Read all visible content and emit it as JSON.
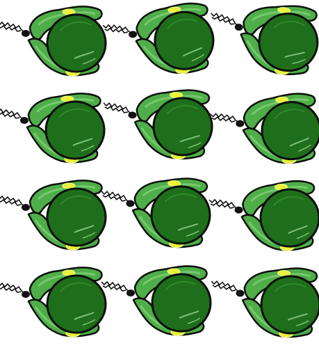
{
  "sprite_sheet": {
    "rows": 4,
    "columns": 3,
    "frame_count": 12,
    "sprite": "green-melon-creature",
    "colors": {
      "background": "#ffffff",
      "body_fill": "#1f6e1c",
      "body_light": "#2f8a2a",
      "body_shine": "#7fc07a",
      "outline": "#0a0f0a",
      "limb_fill": "#4fae49",
      "limb_light": "#76c96d",
      "accent": "#e8f23a",
      "accent_light": "#f6fb8a",
      "stem": "#111111"
    }
  }
}
